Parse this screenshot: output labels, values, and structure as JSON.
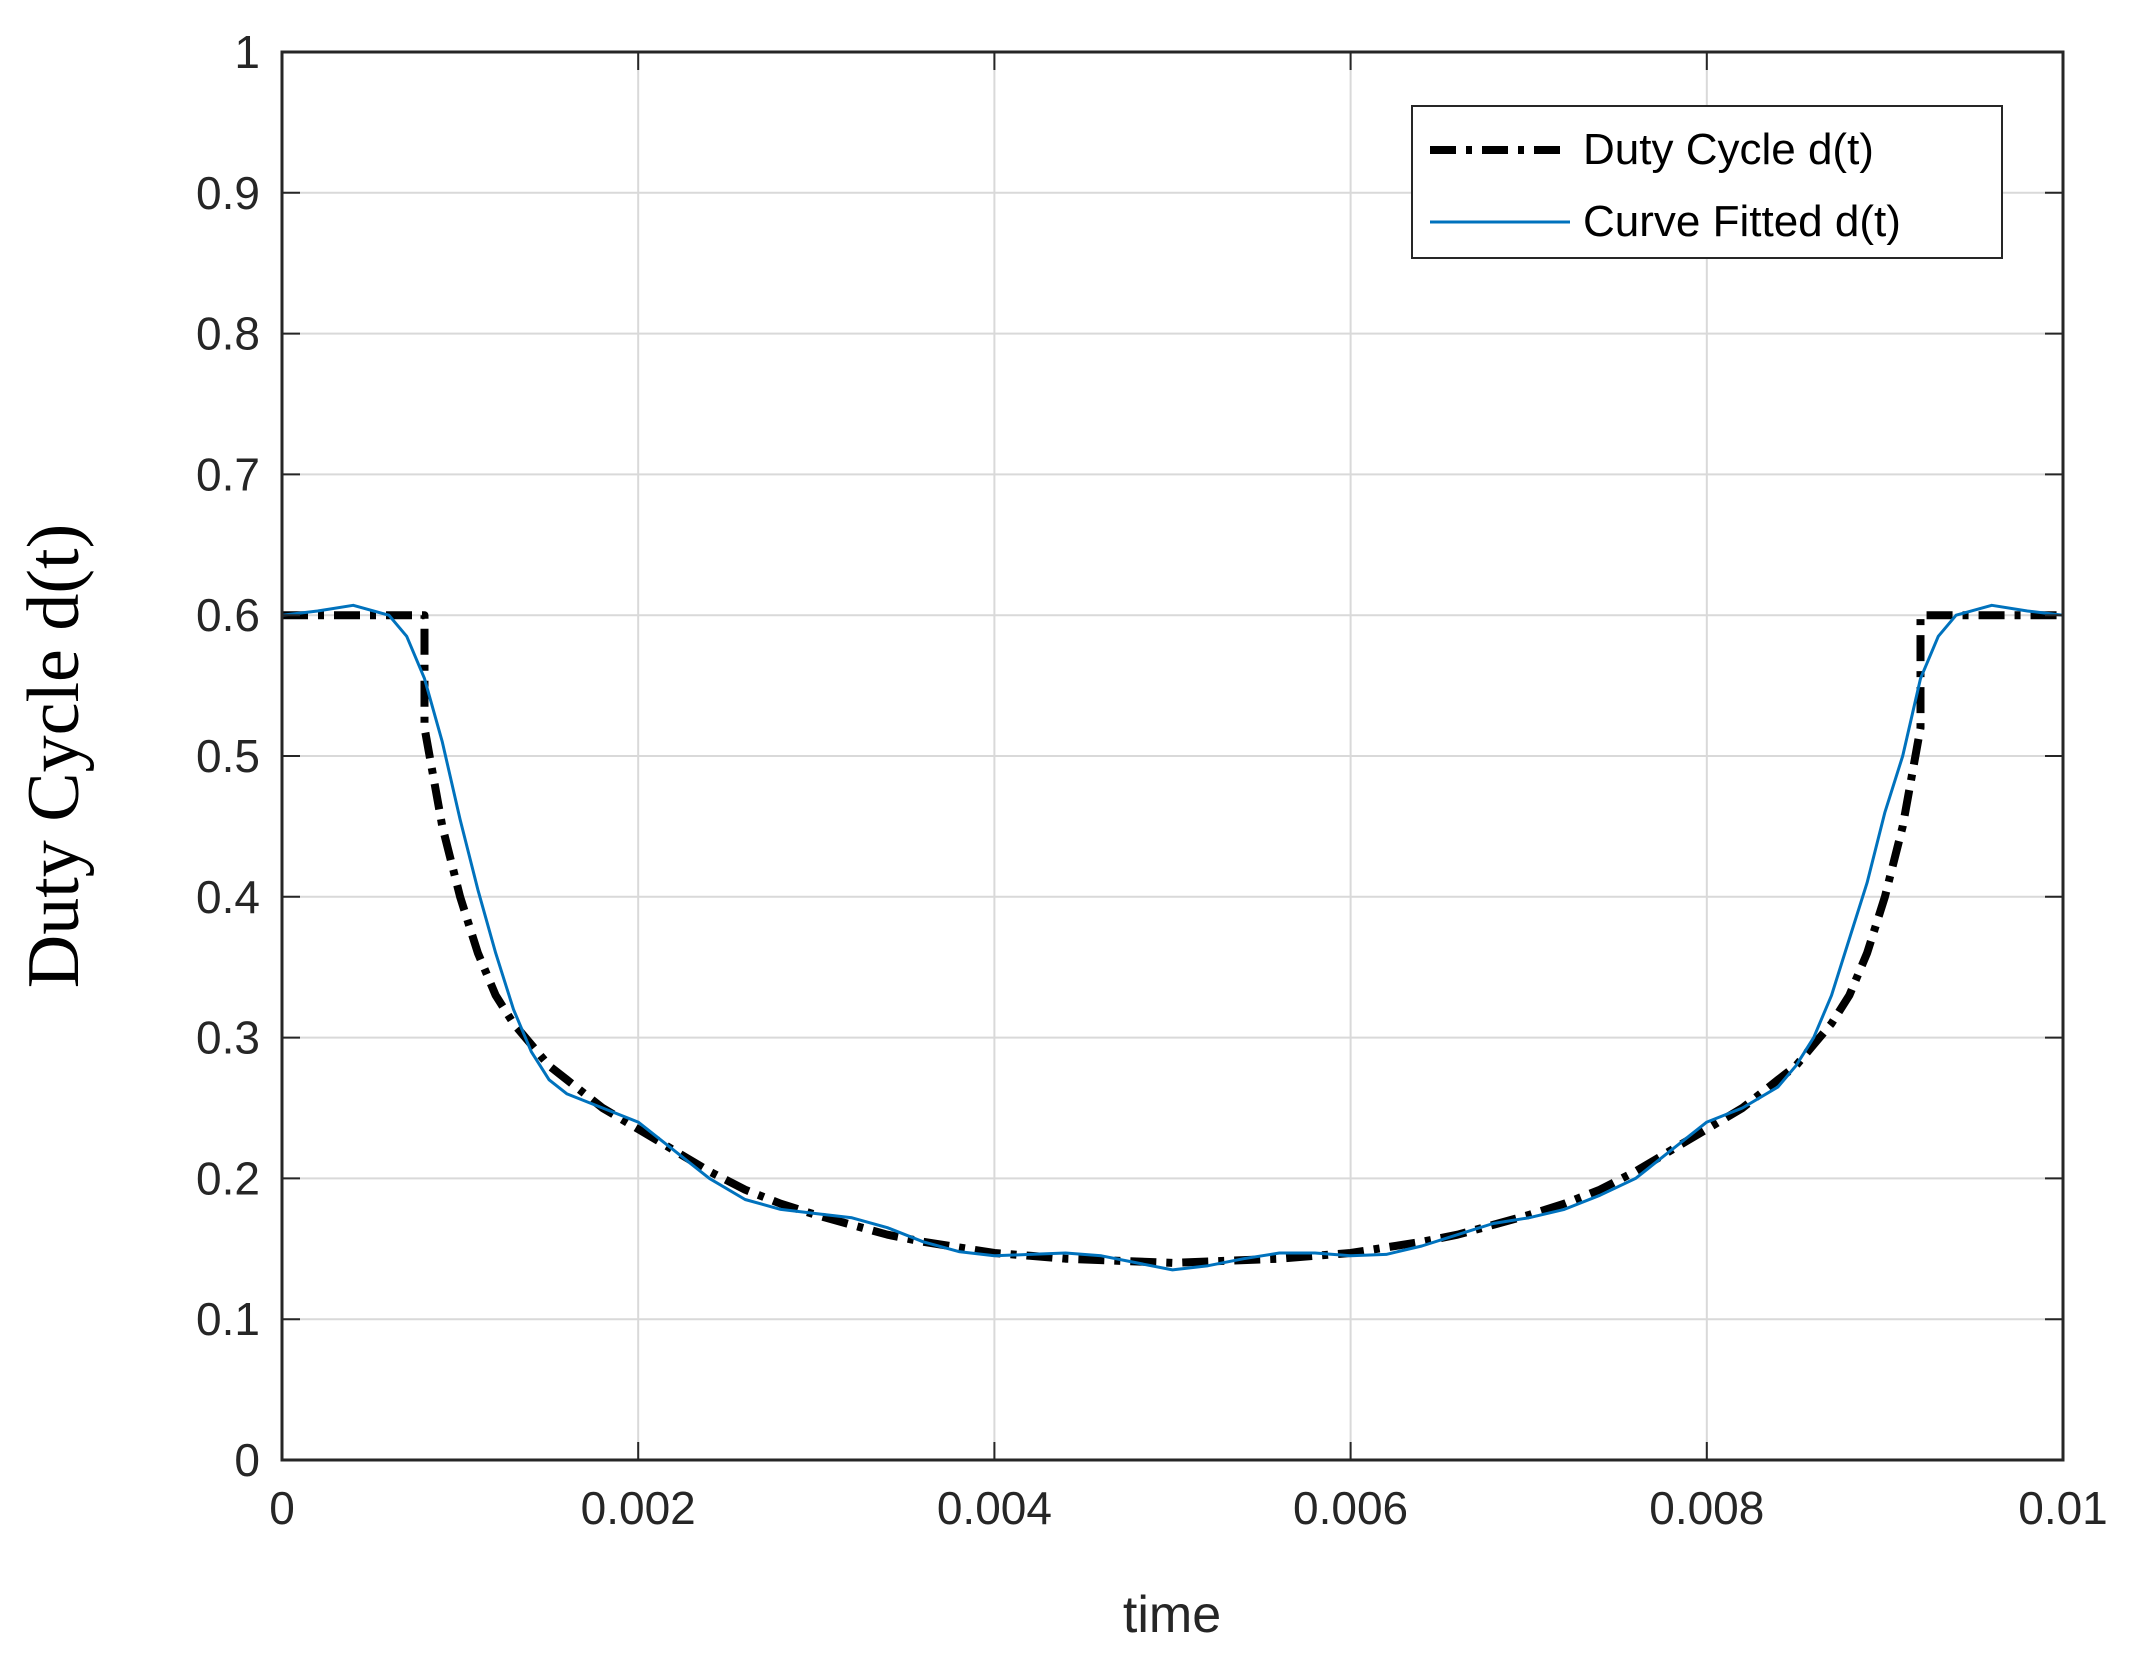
{
  "chart_data": {
    "type": "line",
    "title": "",
    "xlabel": "time",
    "ylabel": "Duty Cycle d(t)",
    "xlim": [
      0,
      0.01
    ],
    "ylim": [
      0,
      1
    ],
    "grid": true,
    "legend_position": "top-right",
    "x_ticks": [
      0,
      0.002,
      0.004,
      0.006,
      0.008,
      0.01
    ],
    "x_tick_labels": [
      "0",
      "0.002",
      "0.004",
      "0.006",
      "0.008",
      "0.01"
    ],
    "y_ticks": [
      0,
      0.1,
      0.2,
      0.3,
      0.4,
      0.5,
      0.6,
      0.7,
      0.8,
      0.9,
      1
    ],
    "y_tick_labels": [
      "0",
      "0.1",
      "0.2",
      "0.3",
      "0.4",
      "0.5",
      "0.6",
      "0.7",
      "0.8",
      "0.9",
      "1"
    ],
    "series": [
      {
        "name": "Duty Cycle d(t)",
        "color": "#000000",
        "style": "dash-dot",
        "x": [
          0,
          0.0008,
          0.0008,
          0.0009,
          0.001,
          0.0011,
          0.0012,
          0.0013,
          0.0014,
          0.0015,
          0.0016,
          0.0018,
          0.002,
          0.0022,
          0.0024,
          0.0026,
          0.0028,
          0.003,
          0.0032,
          0.0034,
          0.0036,
          0.0038,
          0.004,
          0.0042,
          0.0044,
          0.0046,
          0.0048,
          0.005,
          0.0052,
          0.0054,
          0.0056,
          0.0058,
          0.006,
          0.0062,
          0.0064,
          0.0066,
          0.0068,
          0.007,
          0.0072,
          0.0074,
          0.0076,
          0.0078,
          0.008,
          0.0082,
          0.0084,
          0.0085,
          0.0086,
          0.0087,
          0.0088,
          0.0089,
          0.009,
          0.0091,
          0.0092,
          0.0092,
          0.01
        ],
        "y": [
          0.6,
          0.6,
          0.52,
          0.45,
          0.4,
          0.36,
          0.33,
          0.31,
          0.295,
          0.28,
          0.27,
          0.25,
          0.235,
          0.22,
          0.205,
          0.192,
          0.182,
          0.174,
          0.167,
          0.16,
          0.155,
          0.151,
          0.147,
          0.145,
          0.143,
          0.142,
          0.141,
          0.14,
          0.141,
          0.142,
          0.143,
          0.145,
          0.147,
          0.151,
          0.155,
          0.16,
          0.167,
          0.174,
          0.182,
          0.192,
          0.205,
          0.22,
          0.235,
          0.25,
          0.27,
          0.28,
          0.295,
          0.31,
          0.33,
          0.36,
          0.4,
          0.45,
          0.52,
          0.6,
          0.6
        ]
      },
      {
        "name": "Curve Fitted d(t)",
        "color": "#0072bd",
        "style": "solid",
        "x": [
          0,
          0.0002,
          0.0004,
          0.0006,
          0.0007,
          0.0008,
          0.0009,
          0.001,
          0.0011,
          0.0012,
          0.0013,
          0.0014,
          0.0015,
          0.0016,
          0.0018,
          0.002,
          0.0022,
          0.0024,
          0.0026,
          0.0028,
          0.003,
          0.0032,
          0.0034,
          0.0036,
          0.0038,
          0.004,
          0.0042,
          0.0044,
          0.0046,
          0.0048,
          0.005,
          0.0052,
          0.0054,
          0.0056,
          0.0058,
          0.006,
          0.0062,
          0.0064,
          0.0066,
          0.0068,
          0.007,
          0.0072,
          0.0074,
          0.0076,
          0.0078,
          0.008,
          0.0082,
          0.0084,
          0.0085,
          0.0086,
          0.0087,
          0.0088,
          0.0089,
          0.009,
          0.0091,
          0.0092,
          0.0093,
          0.0094,
          0.0096,
          0.0098,
          0.01
        ],
        "y": [
          0.6,
          0.603,
          0.607,
          0.6,
          0.585,
          0.555,
          0.51,
          0.455,
          0.405,
          0.36,
          0.32,
          0.29,
          0.27,
          0.26,
          0.25,
          0.24,
          0.22,
          0.2,
          0.185,
          0.178,
          0.175,
          0.172,
          0.165,
          0.155,
          0.148,
          0.145,
          0.146,
          0.147,
          0.145,
          0.14,
          0.135,
          0.138,
          0.143,
          0.147,
          0.147,
          0.145,
          0.146,
          0.152,
          0.16,
          0.168,
          0.172,
          0.178,
          0.188,
          0.2,
          0.22,
          0.24,
          0.25,
          0.265,
          0.28,
          0.3,
          0.33,
          0.37,
          0.41,
          0.46,
          0.5,
          0.555,
          0.585,
          0.6,
          0.607,
          0.603,
          0.6
        ]
      }
    ]
  }
}
